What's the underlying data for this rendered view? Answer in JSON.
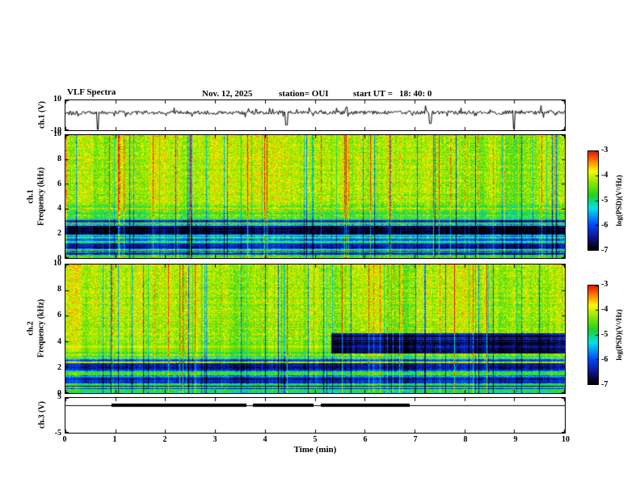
{
  "header": {
    "title": "VLF Spectra",
    "date": "Nov. 12, 2025",
    "station": "station= OUI",
    "start_ut": "start UT =   18: 40: 0"
  },
  "xaxis": {
    "label": "Time (min)",
    "min": 0,
    "max": 10,
    "ticks": [
      0,
      1,
      2,
      3,
      4,
      5,
      6,
      7,
      8,
      9,
      10
    ]
  },
  "colorbar": {
    "label": "log(PSD)(V²/Hz)",
    "max": -3,
    "min": -7,
    "ticks": [
      -3,
      -4,
      -5,
      -6,
      -7
    ]
  },
  "colormap": [
    [
      0.0,
      [
        0,
        0,
        0
      ]
    ],
    [
      0.1,
      [
        15,
        15,
        120
      ]
    ],
    [
      0.25,
      [
        0,
        70,
        255
      ]
    ],
    [
      0.42,
      [
        0,
        225,
        235
      ]
    ],
    [
      0.55,
      [
        30,
        210,
        40
      ]
    ],
    [
      0.68,
      [
        140,
        230,
        0
      ]
    ],
    [
      0.8,
      [
        250,
        250,
        0
      ]
    ],
    [
      0.9,
      [
        255,
        130,
        0
      ]
    ],
    [
      1.0,
      [
        230,
        20,
        0
      ]
    ]
  ],
  "chart_data": [
    {
      "id": "ch1_wave",
      "type": "line",
      "ylabel": "ch.1 (V)",
      "ylim": [
        -10,
        10
      ],
      "yticks": [
        10,
        -10
      ],
      "xlim": [
        0,
        10
      ],
      "baseline": 1.8,
      "noise_amp": 1.3,
      "burst_amp": 4.0,
      "burst_prob": 0.08,
      "spikes": [
        {
          "t": 0.64,
          "v": -9.5
        },
        {
          "t": 4.42,
          "v": -6.5
        },
        {
          "t": 5.62,
          "v": 5.5
        },
        {
          "t": 7.3,
          "v": -5.5
        },
        {
          "t": 8.97,
          "v": -9.0
        }
      ],
      "seed": 101,
      "color": "#000000"
    },
    {
      "id": "ch1_spec",
      "type": "heatmap",
      "ylabel_line1": "ch.1",
      "ylabel_line2": "Frequency (kHz)",
      "ylim": [
        0,
        10
      ],
      "yticks": [
        0,
        2,
        4,
        6,
        8,
        10
      ],
      "xlim": [
        0,
        10
      ],
      "scale": {
        "min": -7,
        "max": -3
      },
      "base_level": -4.35,
      "noise": 0.9,
      "high_freq_boost": 0.25,
      "low_gradient": {
        "below": 4.3,
        "drop": 1.6
      },
      "row_striation": 0.9,
      "bands": [
        {
          "f": [
            1.95,
            2.65
          ],
          "t": [
            0,
            10
          ],
          "level": -6.7,
          "jitter": 0.5
        },
        {
          "f": [
            2.9,
            3.15
          ],
          "t": [
            0,
            10
          ],
          "level": -6.2,
          "jitter": 0.6
        },
        {
          "f": [
            0.75,
            1.15
          ],
          "t": [
            0,
            10
          ],
          "level": -6.4,
          "jitter": 0.5
        },
        {
          "f": [
            1.4,
            1.6
          ],
          "t": [
            0,
            10
          ],
          "level": -6.0,
          "jitter": 0.6
        },
        {
          "f": [
            0.0,
            0.3
          ],
          "t": [
            0,
            10
          ],
          "level": -4.8,
          "jitter": 0.7
        }
      ],
      "streaks": {
        "bright_prob": 0.05,
        "dark_prob": 0.055,
        "bright_amp": 0.9,
        "dark_amp": 1.3
      },
      "seed": 202
    },
    {
      "id": "ch2_spec",
      "type": "heatmap",
      "ylabel_line1": "ch.2",
      "ylabel_line2": "Frequency (kHz)",
      "ylim": [
        0,
        10
      ],
      "yticks": [
        0,
        2,
        4,
        6,
        8,
        10
      ],
      "xlim": [
        0,
        10
      ],
      "scale": {
        "min": -7,
        "max": -3
      },
      "base_level": -4.35,
      "noise": 0.9,
      "high_freq_boost": 0.25,
      "low_gradient": {
        "below": 3.6,
        "drop": 1.5
      },
      "row_striation": 0.9,
      "bands": [
        {
          "f": [
            3.25,
            3.8
          ],
          "t": [
            0,
            5.32
          ],
          "level": -4.2,
          "jitter": 0.2
        },
        {
          "f": [
            3.1,
            4.7
          ],
          "t": [
            5.32,
            10
          ],
          "level": -6.6,
          "jitter": 0.5
        },
        {
          "f": [
            1.8,
            2.35
          ],
          "t": [
            0,
            10
          ],
          "level": -6.5,
          "jitter": 0.5
        },
        {
          "f": [
            2.5,
            2.7
          ],
          "t": [
            0,
            10
          ],
          "level": -6.0,
          "jitter": 0.6
        },
        {
          "f": [
            0.8,
            1.2
          ],
          "t": [
            0,
            10
          ],
          "level": -6.3,
          "jitter": 0.5
        },
        {
          "f": [
            0.0,
            0.3
          ],
          "t": [
            0,
            10
          ],
          "level": -4.9,
          "jitter": 0.7
        }
      ],
      "streaks": {
        "bright_prob": 0.05,
        "dark_prob": 0.055,
        "bright_amp": 0.9,
        "dark_amp": 1.3
      },
      "seed": 303
    },
    {
      "id": "ch3_wave",
      "type": "line",
      "ylabel": "ch.3 (V)",
      "ylim": [
        -5,
        5
      ],
      "yticks": [
        5,
        -5
      ],
      "xlim": [
        0,
        10
      ],
      "level": 3,
      "thin_width": 1,
      "thick_width": 4,
      "thick_segments": [
        [
          0.92,
          3.62
        ],
        [
          3.76,
          4.97
        ],
        [
          5.12,
          6.9
        ]
      ],
      "color": "#000000"
    }
  ]
}
